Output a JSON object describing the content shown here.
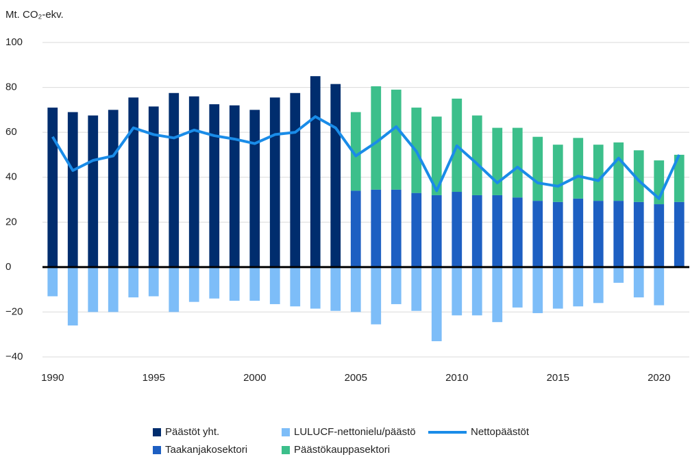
{
  "chart_data": {
    "type": "bar",
    "y_axis_label": "Mt. CO₂-ekv.",
    "x": [
      1990,
      1991,
      1992,
      1993,
      1994,
      1995,
      1996,
      1997,
      1998,
      1999,
      2000,
      2001,
      2002,
      2003,
      2004,
      2005,
      2006,
      2007,
      2008,
      2009,
      2010,
      2011,
      2012,
      2013,
      2014,
      2015,
      2016,
      2017,
      2018,
      2019,
      2020,
      2021
    ],
    "xlim": [
      1989.5,
      2021.5
    ],
    "xticks": [
      1990,
      1995,
      2000,
      2005,
      2010,
      2015,
      2020
    ],
    "ylim": [
      -40,
      100
    ],
    "yticks": [
      {
        "value": -40,
        "label": "−40"
      },
      {
        "value": -20,
        "label": "−20"
      },
      0,
      20,
      40,
      60,
      80,
      100
    ],
    "grid": true,
    "series": [
      {
        "name": "Päästöt yht.",
        "type": "bar",
        "color": "#002d6e",
        "values": [
          71,
          69,
          67.5,
          70,
          75.5,
          71.5,
          77.5,
          76,
          72.5,
          72,
          70,
          75.5,
          77.5,
          85,
          81.5,
          null,
          null,
          null,
          null,
          null,
          null,
          null,
          null,
          null,
          null,
          null,
          null,
          null,
          null,
          null,
          null,
          null
        ]
      },
      {
        "name": "LULUCF-nettonielu/päästö",
        "type": "bar",
        "color": "#7dbdf8",
        "values": [
          -13,
          -26,
          -20,
          -20,
          -13.5,
          -13,
          -20,
          -15.5,
          -14,
          -15,
          -15,
          -16.5,
          -17.5,
          -18.5,
          -19.5,
          -20,
          -25.5,
          -16.5,
          -19.5,
          -33,
          -21.5,
          -21.5,
          -24.5,
          -18,
          -20.5,
          -18.5,
          -17.5,
          -16,
          -7,
          -13.5,
          -17,
          null
        ]
      },
      {
        "name": "Nettopäästöt",
        "type": "line",
        "color": "#1a8ce8",
        "values": [
          58,
          43,
          47.5,
          49.5,
          62,
          59,
          57.5,
          61,
          58.5,
          57,
          55,
          59,
          60,
          67,
          62,
          49.5,
          55.5,
          62.5,
          51.5,
          34,
          54,
          46,
          37.5,
          44.5,
          37.5,
          36,
          40.5,
          38.5,
          48.5,
          38.5,
          30.5,
          50
        ]
      },
      {
        "name": "Taakanjakosektori",
        "type": "bar",
        "color": "#1d5fc2",
        "values": [
          null,
          null,
          null,
          null,
          null,
          null,
          null,
          null,
          null,
          null,
          null,
          null,
          null,
          null,
          null,
          34,
          34.5,
          34.5,
          33,
          32,
          33.5,
          32,
          32,
          31,
          29.5,
          29,
          30.5,
          29.5,
          29.5,
          29,
          28,
          29
        ]
      },
      {
        "name": "Päästökauppasektori",
        "type": "bar",
        "color": "#3cbf8b",
        "values": [
          null,
          null,
          null,
          null,
          null,
          null,
          null,
          null,
          null,
          null,
          null,
          null,
          null,
          null,
          null,
          35,
          46,
          44.5,
          38,
          35,
          41.5,
          35.5,
          30,
          31,
          28.5,
          25.5,
          27,
          25,
          26,
          23,
          19.5,
          21
        ]
      }
    ]
  }
}
